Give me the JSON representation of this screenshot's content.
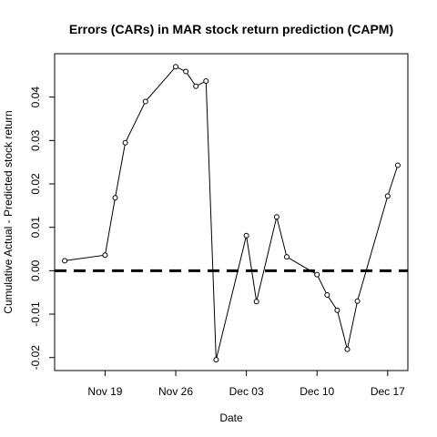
{
  "chart_data": {
    "type": "line",
    "title": "Errors (CARs) in MAR stock return prediction (CAPM)",
    "xlabel": "Date",
    "ylabel": "Cumulative Actual - Predicted stock return",
    "x_ticks": [
      "Nov 19",
      "Nov 26",
      "Dec 03",
      "Dec 10",
      "Dec 17"
    ],
    "y_ticks": [
      "-0.02",
      "-0.01",
      "0.00",
      "0.01",
      "0.02",
      "0.03",
      "0.04"
    ],
    "ylim": [
      -0.023,
      0.05
    ],
    "xlim": [
      "2018-11-14",
      "2018-12-19"
    ],
    "reference_line": {
      "y": 0.0,
      "style": "dashed"
    },
    "series": [
      {
        "points": [
          {
            "x": "2018-11-15",
            "y": 0.0023
          },
          {
            "x": "2018-11-19",
            "y": 0.0036
          },
          {
            "x": "2018-11-20",
            "y": 0.0168
          },
          {
            "x": "2018-11-21",
            "y": 0.0295
          },
          {
            "x": "2018-11-23",
            "y": 0.039
          },
          {
            "x": "2018-11-26",
            "y": 0.047
          },
          {
            "x": "2018-11-27",
            "y": 0.0459
          },
          {
            "x": "2018-11-28",
            "y": 0.0425
          },
          {
            "x": "2018-11-29",
            "y": 0.0437
          },
          {
            "x": "2018-11-30",
            "y": -0.0205
          },
          {
            "x": "2018-12-03",
            "y": 0.0081
          },
          {
            "x": "2018-12-04",
            "y": -0.0071
          },
          {
            "x": "2018-12-06",
            "y": 0.0124
          },
          {
            "x": "2018-12-07",
            "y": 0.0032
          },
          {
            "x": "2018-12-10",
            "y": -0.0009
          },
          {
            "x": "2018-12-11",
            "y": -0.0056
          },
          {
            "x": "2018-12-12",
            "y": -0.0091
          },
          {
            "x": "2018-12-13",
            "y": -0.0181
          },
          {
            "x": "2018-12-14",
            "y": -0.007
          },
          {
            "x": "2018-12-17",
            "y": 0.0172
          },
          {
            "x": "2018-12-18",
            "y": 0.0243
          }
        ]
      }
    ]
  }
}
